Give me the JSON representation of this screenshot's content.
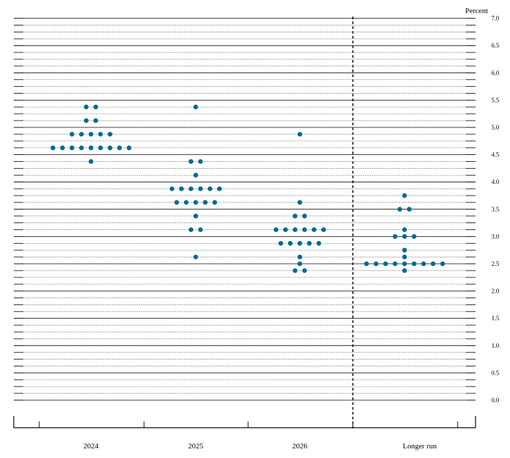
{
  "chart_data": {
    "type": "scatter",
    "unit_label": "Percent",
    "ylim": [
      0,
      7.0
    ],
    "y_ticks": [
      "0.0",
      "0.5",
      "1.0",
      "1.5",
      "2.0",
      "2.5",
      "3.0",
      "3.5",
      "4.0",
      "4.5",
      "5.0",
      "5.5",
      "6.0",
      "6.5",
      "7.0"
    ],
    "categories": [
      "2024",
      "2025",
      "2026",
      "Longer run"
    ],
    "grid": {
      "solid_every": 0.5,
      "dotted_every": 0.125
    },
    "dot_color": "#006a8e",
    "points": [
      {
        "category": "2024",
        "values": [
          5.375,
          5.375,
          5.125,
          5.125,
          4.875,
          4.875,
          4.875,
          4.875,
          4.875,
          4.625,
          4.625,
          4.625,
          4.625,
          4.625,
          4.625,
          4.625,
          4.625,
          4.625,
          4.375
        ]
      },
      {
        "category": "2025",
        "values": [
          5.375,
          4.375,
          4.375,
          4.125,
          3.875,
          3.875,
          3.875,
          3.875,
          3.875,
          3.875,
          3.625,
          3.625,
          3.625,
          3.625,
          3.625,
          3.375,
          3.125,
          3.125,
          2.625
        ]
      },
      {
        "category": "2026",
        "values": [
          4.875,
          3.625,
          3.375,
          3.375,
          3.125,
          3.125,
          3.125,
          3.125,
          3.125,
          3.125,
          2.875,
          2.875,
          2.875,
          2.875,
          2.875,
          2.625,
          2.5,
          2.375,
          2.375
        ]
      },
      {
        "category": "Longer run",
        "values": [
          3.75,
          3.5,
          3.5,
          3.125,
          3.0,
          3.0,
          3.0,
          2.75,
          2.625,
          2.5,
          2.5,
          2.5,
          2.5,
          2.5,
          2.5,
          2.5,
          2.5,
          2.5,
          2.375
        ]
      }
    ]
  }
}
